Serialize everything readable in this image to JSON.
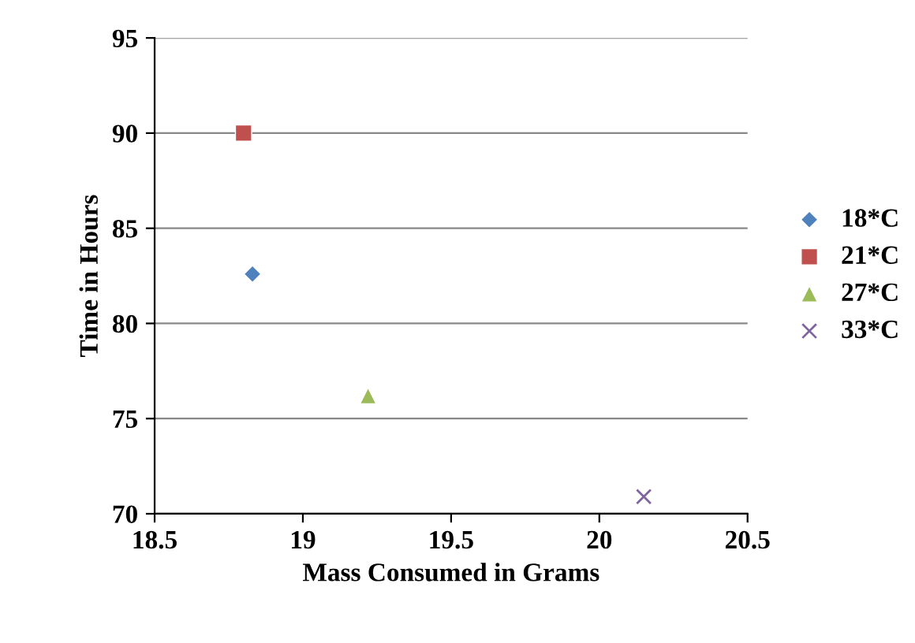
{
  "chart_data": {
    "type": "scatter",
    "xlabel": "Mass Consumed in Grams",
    "ylabel": "Time in Hours",
    "series": [
      {
        "name": "18*C",
        "color": "#4f81bd",
        "marker": "diamond",
        "x": [
          18.83
        ],
        "values": [
          82.6
        ]
      },
      {
        "name": "21*C",
        "color": "#c0504d",
        "marker": "square",
        "x": [
          18.8
        ],
        "values": [
          90
        ]
      },
      {
        "name": "27*C",
        "color": "#9bbb59",
        "marker": "triangle",
        "x": [
          19.22
        ],
        "values": [
          76.2
        ]
      },
      {
        "name": "33*C",
        "color": "#8064a2",
        "marker": "cross",
        "x": [
          20.15
        ],
        "values": [
          70.9
        ]
      }
    ],
    "xlim": [
      18.5,
      20.5
    ],
    "xticks": [
      18.5,
      19,
      19.5,
      20,
      20.5
    ],
    "ylim": [
      70,
      95
    ],
    "yticks": [
      70,
      75,
      80,
      85,
      90,
      95
    ],
    "grid": "y",
    "legend": "right"
  }
}
